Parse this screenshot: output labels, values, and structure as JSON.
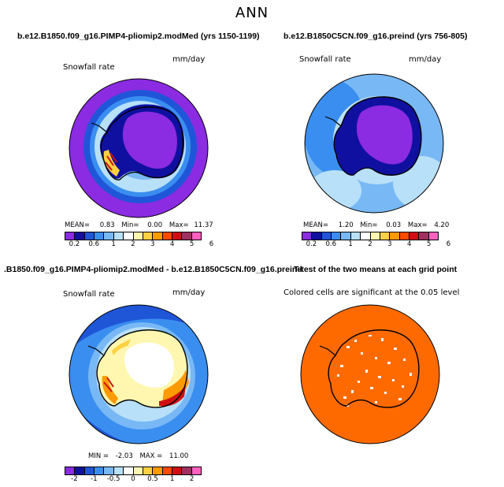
{
  "title": "ANN",
  "panels": [
    {
      "title": "b.e12.B1850.f09_g16.PIMP4-pliomip2.modMed (yrs 1150-1199)",
      "field_label": "Snowfall rate",
      "units": "mm/day",
      "stats": {
        "mean_label": "MEAN=",
        "mean": "0.83",
        "min_label": "Min=",
        "min": "0.00",
        "max_label": "Max=",
        "max": "11.37"
      },
      "colorbar": {
        "colors": [
          "#8b2be2",
          "#1010a0",
          "#1f56d8",
          "#3a8ef0",
          "#78b8f5",
          "#b8e0f8",
          "#ffffff",
          "#fff7b0",
          "#ffd040",
          "#ff9a00",
          "#ff4a00",
          "#d01010",
          "#a03060",
          "#ff60c0"
        ],
        "ticks": [
          "0.2",
          "0.6",
          "1",
          "2",
          "3",
          "4",
          "5",
          "6"
        ]
      }
    },
    {
      "title": "b.e12.B1850C5CN.f09_g16.preind (yrs 756-805)",
      "field_label": "Snowfall rate",
      "units": "mm/day",
      "stats": {
        "mean_label": "MEAN=",
        "mean": "1.20",
        "min_label": "Min=",
        "min": "0.03",
        "max_label": "Max=",
        "max": "4.20"
      },
      "colorbar": {
        "colors": [
          "#8b2be2",
          "#1010a0",
          "#1f56d8",
          "#3a8ef0",
          "#78b8f5",
          "#b8e0f8",
          "#ffffff",
          "#fff7b0",
          "#ffd040",
          "#ff9a00",
          "#ff4a00",
          "#d01010",
          "#a03060",
          "#ff60c0"
        ],
        "ticks": [
          "0.2",
          "0.6",
          "1",
          "2",
          "3",
          "4",
          "5",
          "6"
        ]
      }
    },
    {
      "title": ".B1850.f09_g16.PIMP4-pliomip2.modMed - b.e12.B1850C5CN.f09_g16.preind",
      "field_label": "Snowfall rate",
      "units": "mm/day",
      "stats": {
        "min_label": "MIN =",
        "min": "-2.03",
        "max_label": "MAX =",
        "max": "11.00"
      },
      "colorbar": {
        "colors": [
          "#8b2be2",
          "#1010a0",
          "#1f56d8",
          "#3a8ef0",
          "#78b8f5",
          "#b8e0f8",
          "#ffffff",
          "#fff7b0",
          "#ffd040",
          "#ff9a00",
          "#ff4a00",
          "#d01010",
          "#a03060",
          "#ff60c0"
        ],
        "ticks": [
          "-2",
          "-1",
          "-0.5",
          "0",
          "0.5",
          "1",
          "2"
        ]
      }
    },
    {
      "title": "T-test of the two means at each grid point",
      "note": "Colored cells are significant at the 0.05 level",
      "fill_color": "#ff6a00"
    }
  ]
}
